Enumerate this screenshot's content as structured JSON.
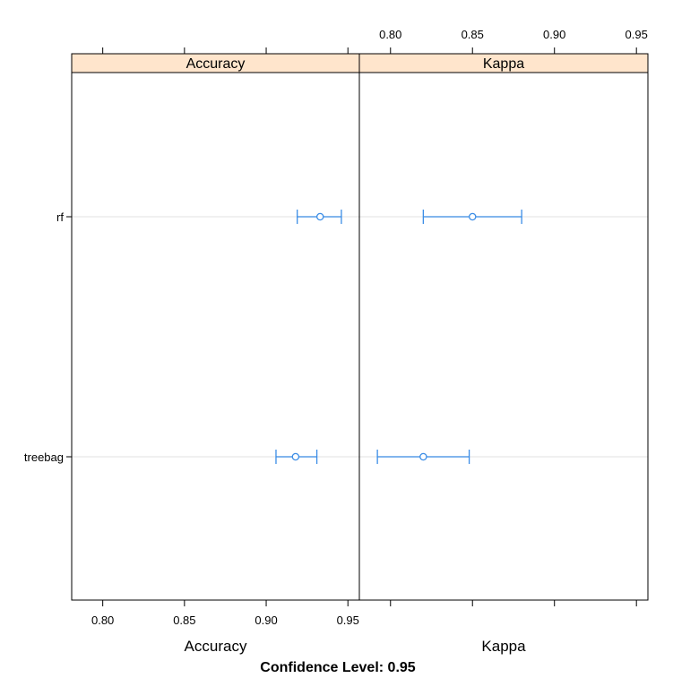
{
  "chart_data": {
    "type": "dotplot",
    "confidence_label": "Confidence Level: 0.95",
    "models": [
      "rf",
      "treebag"
    ],
    "panels": [
      {
        "name": "Accuracy",
        "xlabel": "Accuracy",
        "xlim": [
          0.781,
          0.957
        ],
        "ticks": [
          0.8,
          0.85,
          0.9,
          0.95
        ],
        "tick_labels": [
          "0.80",
          "0.85",
          "0.90",
          "0.95"
        ],
        "tick_labels_side": "bottom",
        "points": [
          {
            "model": "rf",
            "estimate": 0.933,
            "lower": 0.919,
            "upper": 0.946
          },
          {
            "model": "treebag",
            "estimate": 0.918,
            "lower": 0.906,
            "upper": 0.931
          }
        ]
      },
      {
        "name": "Kappa",
        "xlabel": "Kappa",
        "xlim": [
          0.781,
          0.957
        ],
        "ticks": [
          0.8,
          0.85,
          0.9,
          0.95
        ],
        "tick_labels": [
          "0.80",
          "0.85",
          "0.90",
          "0.95"
        ],
        "tick_labels_side": "top",
        "points": [
          {
            "model": "rf",
            "estimate": 0.85,
            "lower": 0.82,
            "upper": 0.88
          },
          {
            "model": "treebag",
            "estimate": 0.82,
            "lower": 0.792,
            "upper": 0.848
          }
        ]
      }
    ],
    "colors": {
      "series": "#3b8de6",
      "strip_bg": "#ffe5cc",
      "gridline": "#e6e6e6",
      "frame": "#000000"
    },
    "grid": "horizontal reference lines"
  }
}
